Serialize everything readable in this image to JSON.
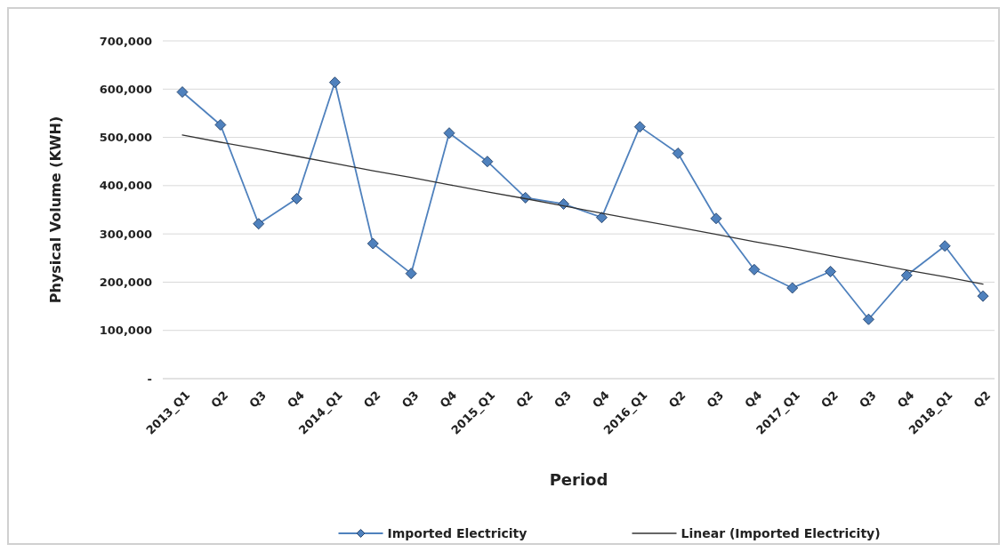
{
  "chart_data": {
    "type": "line",
    "xlabel": "Period",
    "ylabel": "Physical Volume (KWH)",
    "categories": [
      "2013_Q1",
      "Q2",
      "Q3",
      "Q4",
      "2014_Q1",
      "Q2",
      "Q3",
      "Q4",
      "2015_Q1",
      "Q2",
      "Q3",
      "Q4",
      "2016_Q1",
      "Q2",
      "Q3",
      "Q4",
      "2017_Q1",
      "Q2",
      "Q3",
      "Q4",
      "2018_Q1",
      "Q2"
    ],
    "series": [
      {
        "name": "Imported Electricity",
        "color": "#4f81bd",
        "marker": "diamond",
        "values": [
          594000,
          526000,
          321000,
          373000,
          614000,
          280000,
          218000,
          509000,
          450000,
          375000,
          362000,
          334000,
          522000,
          467000,
          332000,
          226000,
          188000,
          222000,
          123000,
          214000,
          275000,
          171000
        ]
      },
      {
        "name": "Linear (Imported Electricity)",
        "color": "#333333",
        "marker": "none",
        "values": [
          505000,
          490000,
          476000,
          461000,
          446000,
          431000,
          417000,
          402000,
          387000,
          373000,
          358000,
          343000,
          328000,
          314000,
          299000,
          284000,
          270000,
          255000,
          240000,
          225000,
          211000,
          196000
        ]
      }
    ],
    "ylim": [
      0,
      700000
    ],
    "yticks": [
      {
        "value": 0,
        "label": "-"
      },
      {
        "value": 100000,
        "label": "100,000"
      },
      {
        "value": 200000,
        "label": "200,000"
      },
      {
        "value": 300000,
        "label": "300,000"
      },
      {
        "value": 400000,
        "label": "400,000"
      },
      {
        "value": 500000,
        "label": "500,000"
      },
      {
        "value": 600000,
        "label": "600,000"
      },
      {
        "value": 700000,
        "label": "700,000"
      }
    ],
    "grid": "y",
    "legend": "bottom",
    "line_style": "solid"
  }
}
